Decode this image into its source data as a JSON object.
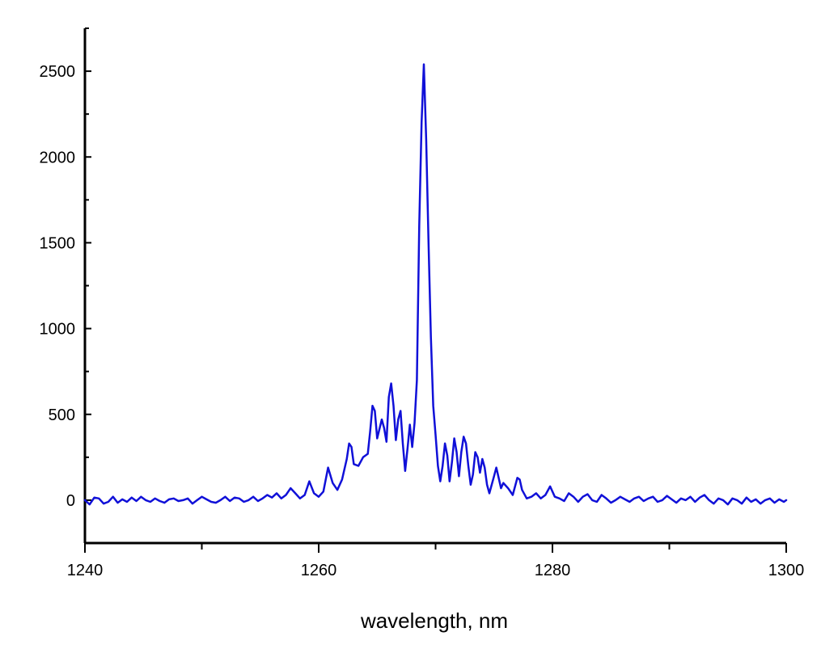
{
  "chart_data": {
    "type": "line",
    "title": "",
    "xlabel": "wavelength, nm",
    "ylabel": "",
    "xlim": [
      1240,
      1300
    ],
    "ylim": [
      -250,
      2750
    ],
    "x_ticks": [
      1240,
      1260,
      1280,
      1300
    ],
    "y_ticks": [
      0,
      500,
      1000,
      1500,
      2000,
      2500
    ],
    "grid": false,
    "legend": "none",
    "series": [
      {
        "color": "#1010d8",
        "points": [
          [
            1240.0,
            0
          ],
          [
            1240.4,
            -25
          ],
          [
            1240.8,
            15
          ],
          [
            1241.2,
            10
          ],
          [
            1241.6,
            -20
          ],
          [
            1242.0,
            -10
          ],
          [
            1242.4,
            20
          ],
          [
            1242.8,
            -15
          ],
          [
            1243.2,
            5
          ],
          [
            1243.6,
            -10
          ],
          [
            1244.0,
            15
          ],
          [
            1244.4,
            -5
          ],
          [
            1244.8,
            20
          ],
          [
            1245.2,
            0
          ],
          [
            1245.6,
            -10
          ],
          [
            1246.0,
            10
          ],
          [
            1246.4,
            -5
          ],
          [
            1246.8,
            -15
          ],
          [
            1247.2,
            5
          ],
          [
            1247.6,
            10
          ],
          [
            1248.0,
            -5
          ],
          [
            1248.4,
            0
          ],
          [
            1248.8,
            10
          ],
          [
            1249.2,
            -20
          ],
          [
            1249.6,
            0
          ],
          [
            1250.0,
            20
          ],
          [
            1250.4,
            5
          ],
          [
            1250.8,
            -10
          ],
          [
            1251.2,
            -15
          ],
          [
            1251.6,
            0
          ],
          [
            1252.0,
            20
          ],
          [
            1252.4,
            -5
          ],
          [
            1252.8,
            15
          ],
          [
            1253.2,
            10
          ],
          [
            1253.6,
            -10
          ],
          [
            1254.0,
            0
          ],
          [
            1254.4,
            20
          ],
          [
            1254.8,
            -5
          ],
          [
            1255.2,
            10
          ],
          [
            1255.6,
            30
          ],
          [
            1256.0,
            15
          ],
          [
            1256.4,
            40
          ],
          [
            1256.8,
            10
          ],
          [
            1257.2,
            30
          ],
          [
            1257.6,
            70
          ],
          [
            1258.0,
            40
          ],
          [
            1258.4,
            10
          ],
          [
            1258.8,
            30
          ],
          [
            1259.2,
            110
          ],
          [
            1259.6,
            40
          ],
          [
            1260.0,
            20
          ],
          [
            1260.4,
            50
          ],
          [
            1260.8,
            190
          ],
          [
            1261.2,
            100
          ],
          [
            1261.6,
            60
          ],
          [
            1262.0,
            120
          ],
          [
            1262.4,
            240
          ],
          [
            1262.6,
            330
          ],
          [
            1262.8,
            310
          ],
          [
            1263.0,
            210
          ],
          [
            1263.4,
            200
          ],
          [
            1263.8,
            250
          ],
          [
            1264.2,
            270
          ],
          [
            1264.4,
            400
          ],
          [
            1264.6,
            550
          ],
          [
            1264.8,
            520
          ],
          [
            1265.0,
            360
          ],
          [
            1265.4,
            470
          ],
          [
            1265.6,
            420
          ],
          [
            1265.8,
            340
          ],
          [
            1266.0,
            600
          ],
          [
            1266.2,
            680
          ],
          [
            1266.4,
            550
          ],
          [
            1266.6,
            350
          ],
          [
            1266.8,
            470
          ],
          [
            1267.0,
            520
          ],
          [
            1267.2,
            330
          ],
          [
            1267.4,
            170
          ],
          [
            1267.6,
            300
          ],
          [
            1267.8,
            440
          ],
          [
            1268.0,
            310
          ],
          [
            1268.2,
            450
          ],
          [
            1268.4,
            700
          ],
          [
            1268.6,
            1600
          ],
          [
            1268.8,
            2200
          ],
          [
            1269.0,
            2540
          ],
          [
            1269.2,
            2100
          ],
          [
            1269.4,
            1500
          ],
          [
            1269.6,
            950
          ],
          [
            1269.8,
            550
          ],
          [
            1270.0,
            380
          ],
          [
            1270.2,
            200
          ],
          [
            1270.4,
            110
          ],
          [
            1270.6,
            200
          ],
          [
            1270.8,
            330
          ],
          [
            1271.0,
            260
          ],
          [
            1271.2,
            110
          ],
          [
            1271.4,
            220
          ],
          [
            1271.6,
            360
          ],
          [
            1271.8,
            280
          ],
          [
            1272.0,
            140
          ],
          [
            1272.2,
            280
          ],
          [
            1272.4,
            370
          ],
          [
            1272.6,
            330
          ],
          [
            1272.8,
            200
          ],
          [
            1273.0,
            90
          ],
          [
            1273.2,
            150
          ],
          [
            1273.4,
            280
          ],
          [
            1273.6,
            250
          ],
          [
            1273.8,
            160
          ],
          [
            1274.0,
            240
          ],
          [
            1274.2,
            190
          ],
          [
            1274.4,
            90
          ],
          [
            1274.6,
            40
          ],
          [
            1275.0,
            140
          ],
          [
            1275.2,
            190
          ],
          [
            1275.4,
            130
          ],
          [
            1275.6,
            70
          ],
          [
            1275.8,
            100
          ],
          [
            1276.2,
            70
          ],
          [
            1276.6,
            30
          ],
          [
            1277.0,
            130
          ],
          [
            1277.2,
            120
          ],
          [
            1277.4,
            60
          ],
          [
            1277.8,
            10
          ],
          [
            1278.2,
            20
          ],
          [
            1278.6,
            40
          ],
          [
            1279.0,
            10
          ],
          [
            1279.4,
            30
          ],
          [
            1279.8,
            80
          ],
          [
            1280.2,
            20
          ],
          [
            1280.6,
            10
          ],
          [
            1281.0,
            -5
          ],
          [
            1281.4,
            40
          ],
          [
            1281.8,
            20
          ],
          [
            1282.2,
            -10
          ],
          [
            1282.6,
            20
          ],
          [
            1283.0,
            35
          ],
          [
            1283.4,
            0
          ],
          [
            1283.8,
            -10
          ],
          [
            1284.2,
            30
          ],
          [
            1284.6,
            10
          ],
          [
            1285.0,
            -15
          ],
          [
            1285.4,
            0
          ],
          [
            1285.8,
            20
          ],
          [
            1286.2,
            5
          ],
          [
            1286.6,
            -10
          ],
          [
            1287.0,
            10
          ],
          [
            1287.4,
            20
          ],
          [
            1287.8,
            -5
          ],
          [
            1288.2,
            10
          ],
          [
            1288.6,
            20
          ],
          [
            1289.0,
            -10
          ],
          [
            1289.4,
            0
          ],
          [
            1289.8,
            25
          ],
          [
            1290.2,
            5
          ],
          [
            1290.6,
            -15
          ],
          [
            1291.0,
            10
          ],
          [
            1291.4,
            0
          ],
          [
            1291.8,
            20
          ],
          [
            1292.2,
            -10
          ],
          [
            1292.6,
            15
          ],
          [
            1293.0,
            30
          ],
          [
            1293.4,
            0
          ],
          [
            1293.8,
            -20
          ],
          [
            1294.2,
            10
          ],
          [
            1294.6,
            0
          ],
          [
            1295.0,
            -25
          ],
          [
            1295.4,
            10
          ],
          [
            1295.8,
            0
          ],
          [
            1296.2,
            -20
          ],
          [
            1296.6,
            15
          ],
          [
            1297.0,
            -10
          ],
          [
            1297.4,
            5
          ],
          [
            1297.8,
            -20
          ],
          [
            1298.2,
            0
          ],
          [
            1298.6,
            10
          ],
          [
            1299.0,
            -15
          ],
          [
            1299.4,
            5
          ],
          [
            1299.8,
            -10
          ],
          [
            1300.0,
            0
          ]
        ]
      }
    ]
  }
}
